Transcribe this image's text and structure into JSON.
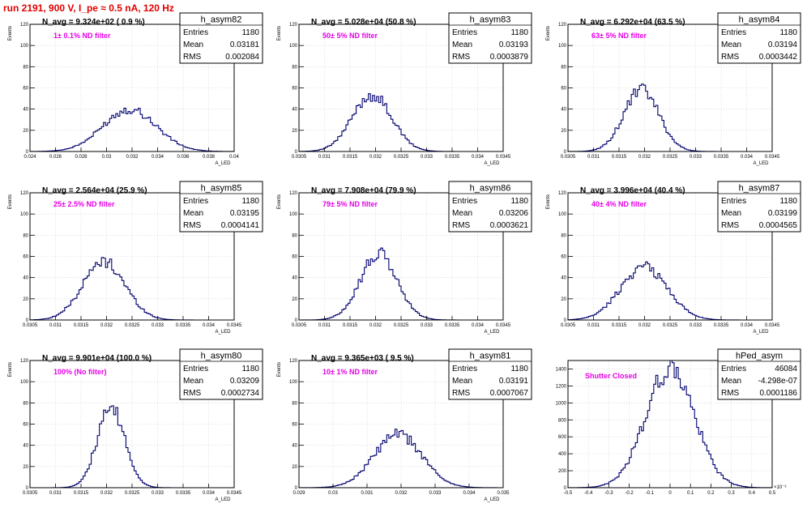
{
  "run_title": "run 2191,   900 V, I_pe ≈ 0.5 nA, 120 Hz",
  "colors": {
    "histogram": "#00006e",
    "filter_label": "#e600e6",
    "run_title": "#e00000",
    "grid": "#c8c8c8"
  },
  "chart_data": [
    {
      "type": "histogram",
      "name": "h_asym82",
      "ylabel": "Events",
      "xlabel": "A_LED",
      "navg": "N_avg = 9.324e+02 ( 0.9 %)",
      "filter": "1± 0.1% ND filter",
      "stats": [
        [
          "Entries",
          "1180"
        ],
        [
          "Mean",
          "0.03181"
        ],
        [
          "RMS",
          "0.002084"
        ]
      ],
      "xlim": [
        0.024,
        0.04
      ],
      "ylim": [
        0,
        120
      ],
      "grid": true,
      "xticks": [
        0.024,
        0.026,
        0.028,
        0.03,
        0.032,
        0.034,
        0.036,
        0.038,
        0.04
      ],
      "xtick_labels": [
        "0.024",
        "0.026",
        "0.028",
        "0.03",
        "0.032",
        "0.034",
        "0.036",
        "0.038",
        "0.04"
      ],
      "yticks": [
        0,
        20,
        40,
        60,
        80,
        100,
        120
      ],
      "ytick_labels": [
        "0",
        "20",
        "40",
        "60",
        "80",
        "100",
        "120"
      ],
      "mean": 0.03181,
      "rms": 0.002084,
      "peak": 40,
      "entries": 1180
    },
    {
      "type": "histogram",
      "name": "h_asym83",
      "ylabel": "Events",
      "xlabel": "A_LED",
      "navg": "N_avg = 5.028e+04 (50.8 %)",
      "filter": "50± 5% ND filter",
      "stats": [
        [
          "Entries",
          "1180"
        ],
        [
          "Mean",
          "0.03193"
        ],
        [
          "RMS",
          "0.0003879"
        ]
      ],
      "xlim": [
        0.0305,
        0.0345
      ],
      "ylim": [
        0,
        120
      ],
      "grid": true,
      "xticks": [
        0.0305,
        0.031,
        0.0315,
        0.032,
        0.0325,
        0.033,
        0.0335,
        0.034,
        0.0345
      ],
      "xtick_labels": [
        "0.0305",
        "0.031",
        "0.0315",
        "0.032",
        "0.0325",
        "0.033",
        "0.0335",
        "0.034",
        "0.0345"
      ],
      "yticks": [
        0,
        20,
        40,
        60,
        80,
        100,
        120
      ],
      "ytick_labels": [
        "0",
        "20",
        "40",
        "60",
        "80",
        "100",
        "120"
      ],
      "mean": 0.03193,
      "rms": 0.0003879,
      "peak": 53,
      "entries": 1180
    },
    {
      "type": "histogram",
      "name": "h_asym84",
      "ylabel": "Events",
      "xlabel": "A_LED",
      "navg": "N_avg = 6.292e+04 (63.5 %)",
      "filter": "63± 5% ND filter",
      "stats": [
        [
          "Entries",
          "1180"
        ],
        [
          "Mean",
          "0.03194"
        ],
        [
          "RMS",
          "0.0003442"
        ]
      ],
      "xlim": [
        0.0305,
        0.0345
      ],
      "ylim": [
        0,
        120
      ],
      "grid": true,
      "xticks": [
        0.0305,
        0.031,
        0.0315,
        0.032,
        0.0325,
        0.033,
        0.0335,
        0.034,
        0.0345
      ],
      "xtick_labels": [
        "0.0305",
        "0.031",
        "0.0315",
        "0.032",
        "0.0325",
        "0.033",
        "0.0335",
        "0.034",
        "0.0345"
      ],
      "yticks": [
        0,
        20,
        40,
        60,
        80,
        100,
        120
      ],
      "ytick_labels": [
        "0",
        "20",
        "40",
        "60",
        "80",
        "100",
        "120"
      ],
      "mean": 0.03194,
      "rms": 0.0003442,
      "peak": 58,
      "entries": 1180
    },
    {
      "type": "histogram",
      "name": "h_asym85",
      "ylabel": "Events",
      "xlabel": "A_LED",
      "navg": "N_avg = 2.564e+04 (25.9 %)",
      "filter": "25± 2.5% ND filter",
      "stats": [
        [
          "Entries",
          "1180"
        ],
        [
          "Mean",
          "0.03195"
        ],
        [
          "RMS",
          "0.0004141"
        ]
      ],
      "xlim": [
        0.0305,
        0.0345
      ],
      "ylim": [
        0,
        120
      ],
      "grid": true,
      "xticks": [
        0.0305,
        0.031,
        0.0315,
        0.032,
        0.0325,
        0.033,
        0.0335,
        0.034,
        0.0345
      ],
      "xtick_labels": [
        "0.0305",
        "0.031",
        "0.0315",
        "0.032",
        "0.0325",
        "0.033",
        "0.0335",
        "0.034",
        "0.0345"
      ],
      "yticks": [
        0,
        20,
        40,
        60,
        80,
        100,
        120
      ],
      "ytick_labels": [
        "0",
        "20",
        "40",
        "60",
        "80",
        "100",
        "120"
      ],
      "mean": 0.03195,
      "rms": 0.0004141,
      "peak": 55,
      "entries": 1180
    },
    {
      "type": "histogram",
      "name": "h_asym86",
      "ylabel": "Events",
      "xlabel": "A_LED",
      "navg": "N_avg = 7.908e+04 (79.9 %)",
      "filter": "79± 5% ND filter",
      "stats": [
        [
          "Entries",
          "1180"
        ],
        [
          "Mean",
          "0.03206"
        ],
        [
          "RMS",
          "0.0003621"
        ]
      ],
      "xlim": [
        0.0305,
        0.0345
      ],
      "ylim": [
        0,
        120
      ],
      "grid": true,
      "xticks": [
        0.0305,
        0.031,
        0.0315,
        0.032,
        0.0325,
        0.033,
        0.0335,
        0.034,
        0.0345
      ],
      "xtick_labels": [
        "0.0305",
        "0.031",
        "0.0315",
        "0.032",
        "0.0325",
        "0.033",
        "0.0335",
        "0.034",
        "0.0345"
      ],
      "yticks": [
        0,
        20,
        40,
        60,
        80,
        100,
        120
      ],
      "ytick_labels": [
        "0",
        "20",
        "40",
        "60",
        "80",
        "100",
        "120"
      ],
      "mean": 0.03206,
      "rms": 0.0003621,
      "peak": 62,
      "entries": 1180
    },
    {
      "type": "histogram",
      "name": "h_asym87",
      "ylabel": "Events",
      "xlabel": "A_LED",
      "navg": "N_avg = 3.996e+04 (40.4 %)",
      "filter": "40± 4% ND filter",
      "stats": [
        [
          "Entries",
          "1180"
        ],
        [
          "Mean",
          "0.03199"
        ],
        [
          "RMS",
          "0.0004565"
        ]
      ],
      "xlim": [
        0.0305,
        0.0345
      ],
      "ylim": [
        0,
        120
      ],
      "grid": true,
      "xticks": [
        0.0305,
        0.031,
        0.0315,
        0.032,
        0.0325,
        0.033,
        0.0335,
        0.034,
        0.0345
      ],
      "xtick_labels": [
        "0.0305",
        "0.031",
        "0.0315",
        "0.032",
        "0.0325",
        "0.033",
        "0.0335",
        "0.034",
        "0.0345"
      ],
      "yticks": [
        0,
        20,
        40,
        60,
        80,
        100,
        120
      ],
      "ytick_labels": [
        "0",
        "20",
        "40",
        "60",
        "80",
        "100",
        "120"
      ],
      "mean": 0.03199,
      "rms": 0.0004565,
      "peak": 50,
      "entries": 1180
    },
    {
      "type": "histogram",
      "name": "h_asym80",
      "ylabel": "Events",
      "xlabel": "A_LED",
      "navg": "N_avg = 9.901e+04 (100.0 %)",
      "filter": "100% (No filter)",
      "stats": [
        [
          "Entries",
          "1180"
        ],
        [
          "Mean",
          "0.03209"
        ],
        [
          "RMS",
          "0.0002734"
        ]
      ],
      "xlim": [
        0.0305,
        0.0345
      ],
      "ylim": [
        0,
        120
      ],
      "grid": true,
      "xticks": [
        0.0305,
        0.031,
        0.0315,
        0.032,
        0.0325,
        0.033,
        0.0335,
        0.034,
        0.0345
      ],
      "xtick_labels": [
        "0.0305",
        "0.031",
        "0.0315",
        "0.032",
        "0.0325",
        "0.033",
        "0.0335",
        "0.034",
        "0.0345"
      ],
      "yticks": [
        0,
        20,
        40,
        60,
        80,
        100,
        120
      ],
      "ytick_labels": [
        "0",
        "20",
        "40",
        "60",
        "80",
        "100",
        "120"
      ],
      "mean": 0.03209,
      "rms": 0.0002734,
      "peak": 74,
      "entries": 1180
    },
    {
      "type": "histogram",
      "name": "h_asym81",
      "ylabel": "Events",
      "xlabel": "A_LED",
      "navg": "N_avg = 9.365e+03 ( 9.5 %)",
      "filter": "10± 1% ND filter",
      "stats": [
        [
          "Entries",
          "1180"
        ],
        [
          "Mean",
          "0.03191"
        ],
        [
          "RMS",
          "0.0007067"
        ]
      ],
      "xlim": [
        0.029,
        0.035
      ],
      "ylim": [
        0,
        120
      ],
      "grid": true,
      "xticks": [
        0.029,
        0.03,
        0.031,
        0.032,
        0.033,
        0.034,
        0.035
      ],
      "xtick_labels": [
        "0.029",
        "0.03",
        "0.031",
        "0.032",
        "0.033",
        "0.034",
        "0.035"
      ],
      "yticks": [
        0,
        20,
        40,
        60,
        80,
        100,
        120
      ],
      "ytick_labels": [
        "0",
        "20",
        "40",
        "60",
        "80",
        "100",
        "120"
      ],
      "mean": 0.03191,
      "rms": 0.0007067,
      "peak": 50,
      "entries": 1180
    },
    {
      "type": "histogram",
      "name": "hPed_asym",
      "ylabel": "",
      "xlabel": "",
      "navg": "",
      "filter": "Shutter Closed",
      "stats": [
        [
          "Entries",
          "46084"
        ],
        [
          "Mean",
          "-4.298e-07"
        ],
        [
          "RMS",
          "0.0001186"
        ]
      ],
      "xlim": [
        -0.5,
        0.5
      ],
      "ylim": [
        0,
        1500
      ],
      "grid": true,
      "x_exponent": "×10⁻³",
      "xticks": [
        -0.5,
        -0.4,
        -0.3,
        -0.2,
        -0.1,
        0,
        0.1,
        0.2,
        0.3,
        0.4,
        0.5
      ],
      "xtick_labels": [
        "-0.5",
        "-0.4",
        "-0.3",
        "-0.2",
        "-0.1",
        "0",
        "0.1",
        "0.2",
        "0.3",
        "0.4",
        "0.5"
      ],
      "yticks": [
        0,
        200,
        400,
        600,
        800,
        1000,
        1200,
        1400
      ],
      "ytick_labels": [
        "0",
        "200",
        "400",
        "600",
        "800",
        "1000",
        "1200",
        "1400"
      ],
      "mean": 0,
      "rms": 0.1186,
      "peak": 1410,
      "entries": 46084
    }
  ]
}
